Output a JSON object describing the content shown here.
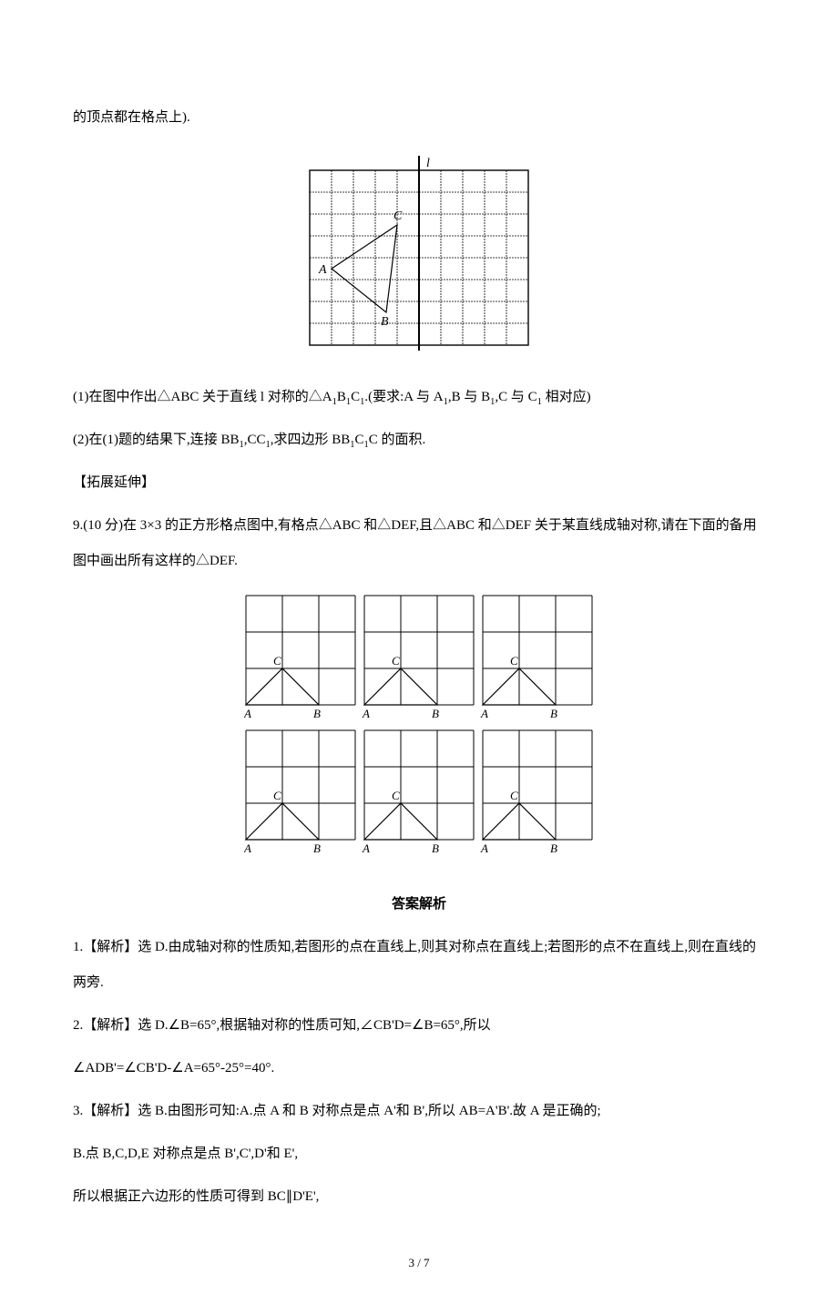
{
  "top_line": "的顶点都在格点上).",
  "fig1": {
    "grid": {
      "cols": 10,
      "rows": 8,
      "cell": 24,
      "stroke": "#000000",
      "fill": "#ffffff",
      "dash": "2,1",
      "dash_width": 0.8
    },
    "axis_l": {
      "x": 5,
      "label": "l",
      "label_dx": 8,
      "label_dy": -4,
      "stroke": "#000000",
      "width": 2
    },
    "triangle": {
      "A": {
        "gx": 1,
        "gy": 4.5,
        "label": "A",
        "ldx": -14,
        "ldy": 5
      },
      "B": {
        "gx": 3.5,
        "gy": 6.5,
        "label": "B",
        "ldx": -6,
        "ldy": 14
      },
      "C": {
        "gx": 4,
        "gy": 2.5,
        "label": "C",
        "ldx": -4,
        "ldy": -6
      },
      "stroke": "#000000",
      "width": 1.2
    },
    "font": {
      "size": 14,
      "italic_axis": true
    }
  },
  "q_part1": "(1)在图中作出△ABC 关于直线 l 对称的△A",
  "q_part1_sub1": "1",
  "q_part1_b": "B",
  "q_part1_sub2": "1",
  "q_part1_c": "C",
  "q_part1_sub3": "1",
  "q_part1_tail": ".(要求:A 与 A",
  "q_part1_sub4": "1",
  "q_part1_t2": ",B 与 B",
  "q_part1_sub5": "1",
  "q_part1_t3": ",C 与 C",
  "q_part1_sub6": "1",
  "q_part1_end": " 相对应)",
  "q_part2": "(2)在(1)题的结果下,连接 BB",
  "q_part2_sub1": "1",
  "q_part2_t1": ",CC",
  "q_part2_sub2": "1",
  "q_part2_t2": ",求四边形 BB",
  "q_part2_sub3": "1",
  "q_part2_t3": "C",
  "q_part2_sub4": "1",
  "q_part2_end": "C 的面积.",
  "extend_label": "【拓展延伸】",
  "q9": "9.(10 分)在 3×3 的正方形格点图中,有格点△ABC 和△DEF,且△ABC 和△DEF 关于某直线成轴对称,请在下面的备用图中画出所有这样的△DEF.",
  "fig2": {
    "panel": {
      "w": 3,
      "h": 3,
      "cell": 40,
      "stroke": "#000000",
      "width": 1
    },
    "cols": 3,
    "rows": 2,
    "gap": 10,
    "labels": {
      "A": "A",
      "B": "B",
      "C": "C"
    },
    "triangle": {
      "A": {
        "gx": 0,
        "gy": 3
      },
      "B": {
        "gx": 2,
        "gy": 3
      },
      "C": {
        "gx": 1,
        "gy": 2
      }
    },
    "font_size": 13
  },
  "answer_header": "答案解析",
  "ans1": "1.【解析】选 D.由成轴对称的性质知,若图形的点在直线上,则其对称点在直线上;若图形的点不在直线上,则在直线的两旁.",
  "ans2": "2.【解析】选 D.∠B=65°,根据轴对称的性质可知,∠CB'D=∠B=65°,所以",
  "ans2b": "∠ADB'=∠CB'D-∠A=65°-25°=40°.",
  "ans3": "3.【解析】选 B.由图形可知:A.点 A 和 B 对称点是点 A'和 B',所以 AB=A'B'.故 A 是正确的;",
  "ans3b": "B.点 B,C,D,E 对称点是点 B',C',D'和 E',",
  "ans3c": "所以根据正六边形的性质可得到 BC∥D'E',",
  "pageNum": "3 / 7"
}
